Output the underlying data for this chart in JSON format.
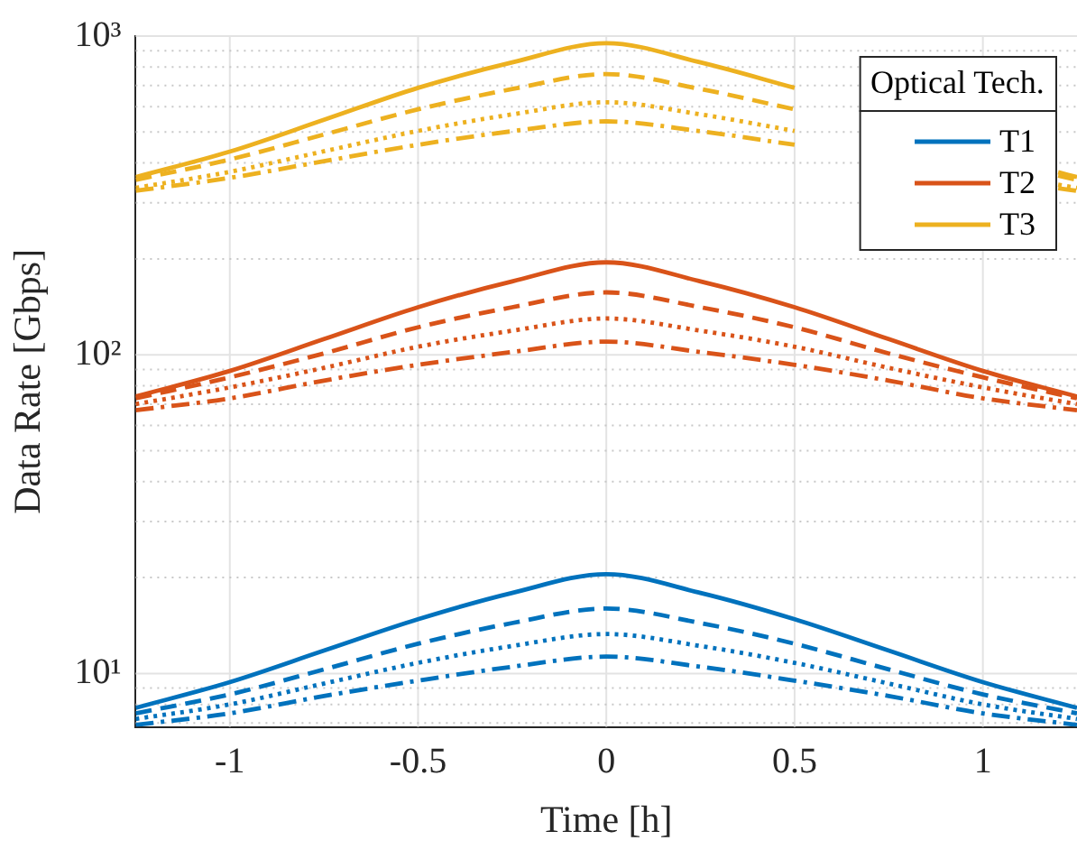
{
  "chart_data": {
    "type": "line",
    "xlabel": "Time [h]",
    "ylabel": "Data Rate [Gbps]",
    "legend_title": "Optical Tech.",
    "legend": "top right",
    "log": "y",
    "grid": true,
    "x": [
      -1.25,
      -1,
      -0.75,
      -0.5,
      -0.25,
      0,
      0.25,
      0.5,
      0.75,
      1,
      1.25
    ],
    "xlim": [
      -1.25,
      1.25
    ],
    "xticks": [
      -1,
      -0.5,
      0,
      0.5,
      1
    ],
    "ylim": [
      6.8,
      1000
    ],
    "yticks": [
      {
        "value": 7,
        "label": null
      },
      {
        "value": 8,
        "label": null
      },
      {
        "value": 9,
        "label": null
      },
      {
        "value": 10,
        "label": "10¹"
      },
      {
        "value": 20,
        "label": null
      },
      {
        "value": 30,
        "label": null
      },
      {
        "value": 40,
        "label": null
      },
      {
        "value": 50,
        "label": null
      },
      {
        "value": 60,
        "label": null
      },
      {
        "value": 70,
        "label": null
      },
      {
        "value": 80,
        "label": null
      },
      {
        "value": 90,
        "label": null
      },
      {
        "value": 100,
        "label": "10²"
      },
      {
        "value": 200,
        "label": null
      },
      {
        "value": 300,
        "label": null
      },
      {
        "value": 400,
        "label": null
      },
      {
        "value": 500,
        "label": null
      },
      {
        "value": 600,
        "label": null
      },
      {
        "value": 700,
        "label": null
      },
      {
        "value": 800,
        "label": null
      },
      {
        "value": 900,
        "label": null
      },
      {
        "value": 1000,
        "label": "10³"
      }
    ],
    "series": [
      {
        "name": "T1",
        "color": "#0072bd",
        "line_style": "solid",
        "values": [
          7.8,
          9.4,
          11.8,
          14.8,
          17.9,
          20.5,
          17.9,
          14.8,
          11.8,
          9.4,
          7.8
        ]
      },
      {
        "color": "#0072bd",
        "line_style": "dashed",
        "values": [
          7.5,
          8.6,
          10.3,
          12.4,
          14.4,
          16,
          14.4,
          12.4,
          10.3,
          8.6,
          7.5
        ]
      },
      {
        "color": "#0072bd",
        "line_style": "dotted",
        "values": [
          7.2,
          8.0,
          9.3,
          10.8,
          12.2,
          13.3,
          12.2,
          10.8,
          9.3,
          8.0,
          7.2
        ]
      },
      {
        "color": "#0072bd",
        "line_style": "dashdot",
        "values": [
          6.9,
          7.5,
          8.5,
          9.5,
          10.5,
          11.3,
          10.5,
          9.5,
          8.5,
          7.5,
          6.9
        ]
      },
      {
        "name": "T2",
        "color": "#d95319",
        "line_style": "solid",
        "values": [
          74,
          89,
          112,
          141,
          170,
          195,
          170,
          141,
          112,
          89,
          74
        ]
      },
      {
        "color": "#d95319",
        "line_style": "dashed",
        "values": [
          73,
          85,
          101,
          122,
          141,
          157,
          141,
          122,
          101,
          85,
          73
        ]
      },
      {
        "color": "#d95319",
        "line_style": "dotted",
        "values": [
          70,
          79,
          91,
          106,
          119,
          130,
          119,
          106,
          91,
          79,
          70
        ]
      },
      {
        "color": "#d95319",
        "line_style": "dashdot",
        "values": [
          67,
          73,
          83,
          93,
          102,
          110,
          102,
          93,
          83,
          73,
          67
        ]
      },
      {
        "name": "T3",
        "color": "#edb120",
        "line_style": "solid",
        "x": [
          -1.25,
          -1,
          -0.75,
          -0.5,
          -0.25,
          0,
          0.25,
          0.5,
          0.75,
          1,
          1.2,
          1.25
        ],
        "values": [
          361,
          434,
          546,
          688,
          827,
          950,
          827,
          688,
          null,
          null,
          374,
          361
        ]
      },
      {
        "color": "#edb120",
        "line_style": "dashed",
        "x": [
          -1.25,
          -1,
          -0.75,
          -0.5,
          -0.25,
          0,
          0.25,
          0.5,
          0.75,
          1,
          1.2,
          1.25
        ],
        "values": [
          354,
          410,
          491,
          589,
          682,
          760,
          682,
          589,
          null,
          null,
          365,
          354
        ]
      },
      {
        "color": "#edb120",
        "line_style": "dotted",
        "x": [
          -1.25,
          -1,
          -0.75,
          -0.5,
          -0.25,
          0,
          0.25,
          0.5,
          0.75,
          1,
          1.2,
          1.25
        ],
        "values": [
          334,
          375,
          435,
          504,
          568,
          620,
          568,
          504,
          null,
          null,
          342,
          334
        ]
      },
      {
        "color": "#edb120",
        "line_style": "dashdot",
        "x": [
          -1.25,
          -1,
          -0.75,
          -0.5,
          -0.25,
          0,
          0.25,
          0.5,
          0.75,
          1,
          1.2,
          1.25
        ],
        "values": [
          327,
          359,
          405,
          456,
          503,
          540,
          503,
          456,
          null,
          null,
          333,
          327
        ]
      }
    ]
  }
}
